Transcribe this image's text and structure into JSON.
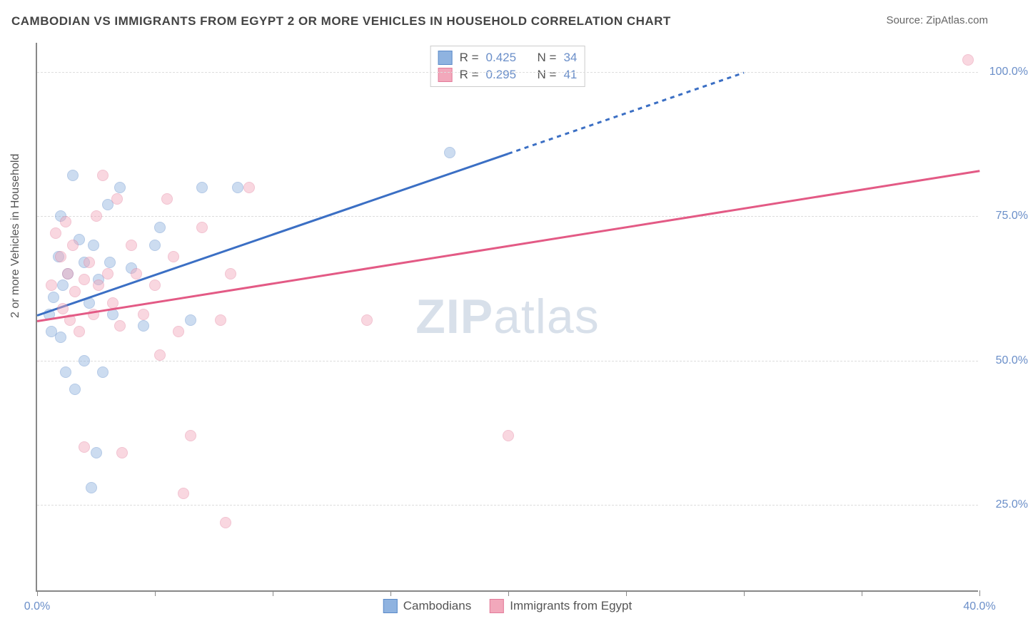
{
  "title": "CAMBODIAN VS IMMIGRANTS FROM EGYPT 2 OR MORE VEHICLES IN HOUSEHOLD CORRELATION CHART",
  "source": "Source: ZipAtlas.com",
  "y_axis_label": "2 or more Vehicles in Household",
  "watermark_bold": "ZIP",
  "watermark_light": "atlas",
  "chart": {
    "type": "scatter",
    "background_color": "#ffffff",
    "grid_color": "#dddddd",
    "axis_color": "#888888",
    "label_color": "#6b8fc9",
    "xlim": [
      0,
      40
    ],
    "ylim": [
      10,
      105
    ],
    "x_ticks": [
      0,
      5,
      10,
      15,
      20,
      25,
      30,
      35,
      40
    ],
    "x_tick_labels": {
      "0": "0.0%",
      "40": "40.0%"
    },
    "y_ticks": [
      25,
      50,
      75,
      100
    ],
    "y_tick_labels": {
      "25": "25.0%",
      "50": "50.0%",
      "75": "75.0%",
      "100": "100.0%"
    },
    "marker_radius": 8,
    "marker_opacity_fill": 0.45,
    "marker_stroke_width": 1.5,
    "title_fontsize": 17,
    "label_fontsize": 16
  },
  "series": [
    {
      "name": "Cambodians",
      "color_fill": "#8fb3e0",
      "color_stroke": "#5b8ac9",
      "R": "0.425",
      "N": "34",
      "trend": {
        "x0": 0,
        "y0": 58,
        "x1": 20,
        "y1": 86,
        "dashed_from_x": 20,
        "x2": 30,
        "y2": 100,
        "color": "#3b6fc4",
        "width": 3
      },
      "points": [
        [
          0.5,
          58
        ],
        [
          0.6,
          55
        ],
        [
          0.7,
          61
        ],
        [
          0.9,
          68
        ],
        [
          1.0,
          75
        ],
        [
          1.0,
          54
        ],
        [
          1.1,
          63
        ],
        [
          1.2,
          48
        ],
        [
          1.3,
          65
        ],
        [
          1.5,
          82
        ],
        [
          1.6,
          45
        ],
        [
          1.8,
          71
        ],
        [
          2.0,
          67
        ],
        [
          2.0,
          50
        ],
        [
          2.2,
          60
        ],
        [
          2.3,
          28
        ],
        [
          2.4,
          70
        ],
        [
          2.5,
          34
        ],
        [
          2.6,
          64
        ],
        [
          2.8,
          48
        ],
        [
          3.0,
          77
        ],
        [
          3.1,
          67
        ],
        [
          3.2,
          58
        ],
        [
          3.5,
          80
        ],
        [
          4.0,
          66
        ],
        [
          4.5,
          56
        ],
        [
          5.0,
          70
        ],
        [
          5.2,
          73
        ],
        [
          6.5,
          57
        ],
        [
          7.0,
          80
        ],
        [
          8.5,
          80
        ],
        [
          17.5,
          86
        ]
      ]
    },
    {
      "name": "Immigrants from Egypt",
      "color_fill": "#f2a8bb",
      "color_stroke": "#e37b9a",
      "R": "0.295",
      "N": "41",
      "trend": {
        "x0": 0,
        "y0": 57,
        "x1": 40,
        "y1": 83,
        "color": "#e35a85",
        "width": 2.5
      },
      "points": [
        [
          0.6,
          63
        ],
        [
          0.8,
          72
        ],
        [
          1.0,
          68
        ],
        [
          1.1,
          59
        ],
        [
          1.2,
          74
        ],
        [
          1.3,
          65
        ],
        [
          1.4,
          57
        ],
        [
          1.5,
          70
        ],
        [
          1.6,
          62
        ],
        [
          1.8,
          55
        ],
        [
          2.0,
          64
        ],
        [
          2.0,
          35
        ],
        [
          2.2,
          67
        ],
        [
          2.4,
          58
        ],
        [
          2.5,
          75
        ],
        [
          2.6,
          63
        ],
        [
          2.8,
          82
        ],
        [
          3.0,
          65
        ],
        [
          3.2,
          60
        ],
        [
          3.4,
          78
        ],
        [
          3.5,
          56
        ],
        [
          3.6,
          34
        ],
        [
          4.0,
          70
        ],
        [
          4.2,
          65
        ],
        [
          4.5,
          58
        ],
        [
          5.0,
          63
        ],
        [
          5.2,
          51
        ],
        [
          5.5,
          78
        ],
        [
          5.8,
          68
        ],
        [
          6.0,
          55
        ],
        [
          6.2,
          27
        ],
        [
          6.5,
          37
        ],
        [
          7.0,
          73
        ],
        [
          7.8,
          57
        ],
        [
          8.2,
          65
        ],
        [
          8.0,
          22
        ],
        [
          9.0,
          80
        ],
        [
          14.0,
          57
        ],
        [
          20.0,
          37
        ],
        [
          39.5,
          102
        ]
      ]
    }
  ],
  "stats_labels": {
    "R": "R =",
    "N": "N ="
  },
  "legend": {
    "items": [
      "Cambodians",
      "Immigrants from Egypt"
    ]
  }
}
